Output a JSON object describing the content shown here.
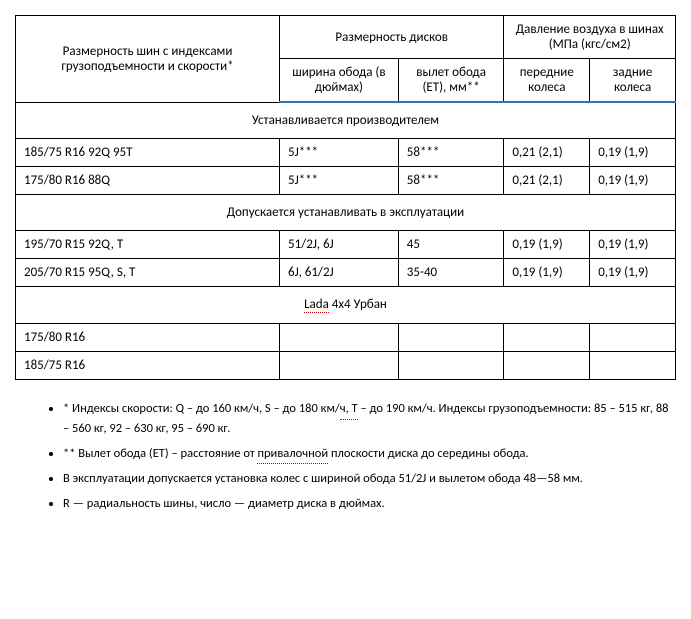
{
  "headers": {
    "tire_size": "Размерность шин с индексами грузоподъемности и скорости*",
    "disc_size": "Размерность дисков",
    "pressure": "Давление воздуха в шинах (МПа (кгс/см2)",
    "rim_width": "ширина обода (в дюймах)",
    "rim_offset": "вылет обода (ET), мм**",
    "front": "передние колеса",
    "rear": "задние колеса"
  },
  "sections": {
    "manufacturer": "Устанавливается производителем",
    "allowed": "Допускается устанавливать в эксплуатации",
    "lada_a": "Lada",
    "lada_b": "4х4 Урбан"
  },
  "rows": {
    "r1": {
      "c1": "185/75 R16 92Q 95T",
      "c2": "5J***",
      "c3": "58***",
      "c4": "0,21 (2,1)",
      "c5": "0,19 (1,9)"
    },
    "r2": {
      "c1": "175/80 R16 88Q",
      "c2": "5J***",
      "c3": "58***",
      "c4": "0,21 (2,1)",
      "c5": "0,19 (1,9)"
    },
    "r3": {
      "c1": "195/70 R15 92Q, T",
      "c2": "51/2J, 6J",
      "c3": "45",
      "c4": "0,19 (1,9)",
      "c5": "0,19 (1,9)"
    },
    "r4": {
      "c1": "205/70 R15 95Q, S, T",
      "c2": "6J, 61/2J",
      "c3": "35-40",
      "c4": "0,19 (1,9)",
      "c5": "0,19 (1,9)"
    },
    "r5": {
      "c1": "175/80 R16",
      "c2": "",
      "c3": "",
      "c4": "",
      "c5": ""
    },
    "r6": {
      "c1": "185/75 R16",
      "c2": "",
      "c3": "",
      "c4": "",
      "c5": ""
    }
  },
  "notes": {
    "n1a": "* Индексы скорости: Q – до 160 км/ч, S – до 180 км/",
    "n1u1": "ч,  Т",
    "n1b": " – до 190 км/ч. Индексы грузоподъемности: 85 – 515 кг, 88 – 560 кг, 92 – 630 кг, 95 – 690 кг.",
    "n2a": "** Вылет обода (ET) – расстояние от ",
    "n2u": "привалочной",
    "n2b": " плоскости диска до середины обода.",
    "n3": "В эксплуатации допускается установка колес с шириной обода 51/2J и вылетом обода 48—58 мм.",
    "n4": "R — радиальность шины, число — диаметр диска в дюймах."
  }
}
